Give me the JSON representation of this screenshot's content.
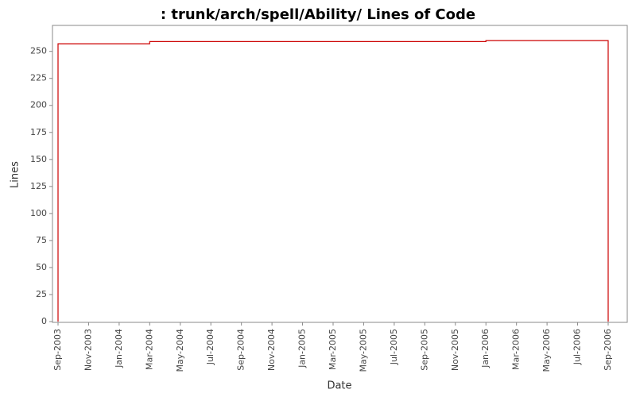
{
  "chart_data": {
    "type": "step-line",
    "title": ": trunk/arch/spell/Ability/ Lines of Code",
    "x_label": "Date",
    "y_label": "Lines",
    "xticks": [
      "Sep-2003",
      "Nov-2003",
      "Jan-2004",
      "Mar-2004",
      "May-2004",
      "Jul-2004",
      "Sep-2004",
      "Nov-2004",
      "Jan-2005",
      "Mar-2005",
      "May-2005",
      "Jul-2005",
      "Sep-2005",
      "Nov-2005",
      "Jan-2006",
      "Mar-2006",
      "May-2006",
      "Jul-2006",
      "Sep-2006"
    ],
    "series": [
      {
        "name": "Lines",
        "color": "#cc0000",
        "x": [
          "Sep-2003",
          "Sep-2003",
          "Mar-2004",
          "Mar-2004",
          "Jan-2006",
          "Jan-2006",
          "Sep-2006",
          "Sep-2006"
        ],
        "values": [
          0,
          257,
          257,
          259,
          259,
          260,
          260,
          0
        ]
      }
    ],
    "ylim": [
      0,
      274
    ],
    "yticks": [
      0,
      25,
      50,
      75,
      100,
      125,
      150,
      175,
      200,
      225,
      250
    ]
  }
}
